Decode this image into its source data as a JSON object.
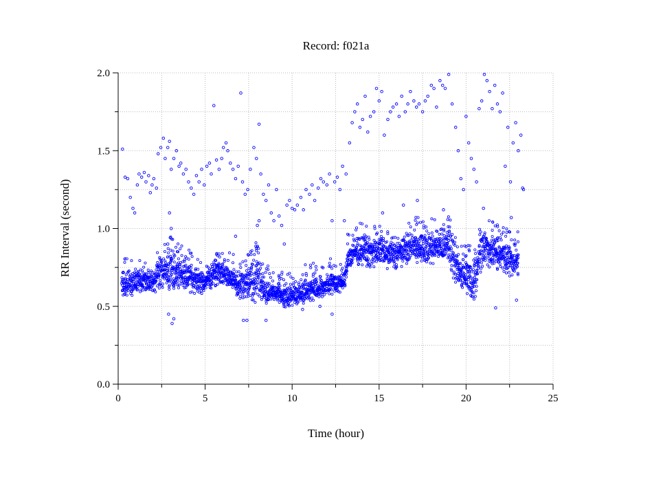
{
  "chart_data": {
    "type": "scatter",
    "title": "Record:  f021a",
    "xlabel": "Time (hour)",
    "ylabel": "RR Interval (second)",
    "xlim": [
      0,
      25
    ],
    "ylim": [
      0.0,
      2.0
    ],
    "xticks": [
      0,
      5,
      10,
      15,
      20,
      25
    ],
    "xtick_labels": [
      "0",
      "5",
      "10",
      "15",
      "20",
      "25"
    ],
    "yticks": [
      0.0,
      0.5,
      1.0,
      1.5,
      2.0
    ],
    "ytick_labels": [
      "0.0",
      "0.5",
      "1.0",
      "1.5",
      "2.0"
    ],
    "grid": true,
    "marker_color": "#0000ff",
    "dense_band": {
      "x": [
        0.2,
        0.5,
        1.0,
        1.5,
        2.0,
        2.5,
        3.0,
        3.5,
        4.0,
        4.5,
        5.0,
        5.5,
        6.0,
        6.5,
        7.0,
        7.5,
        8.0,
        8.5,
        9.0,
        9.5,
        10.0,
        10.5,
        11.0,
        11.5,
        12.0,
        12.5,
        13.0,
        13.2,
        13.5,
        14.0,
        14.5,
        15.0,
        15.5,
        16.0,
        16.5,
        17.0,
        17.5,
        18.0,
        18.5,
        19.0,
        19.3,
        19.5,
        20.0,
        20.5,
        20.8,
        21.0,
        21.5,
        22.0,
        22.5,
        23.0
      ],
      "y_low": [
        0.58,
        0.55,
        0.6,
        0.6,
        0.6,
        0.62,
        0.6,
        0.62,
        0.6,
        0.58,
        0.6,
        0.62,
        0.65,
        0.6,
        0.55,
        0.55,
        0.52,
        0.52,
        0.55,
        0.5,
        0.5,
        0.52,
        0.54,
        0.55,
        0.58,
        0.58,
        0.6,
        0.72,
        0.75,
        0.78,
        0.75,
        0.78,
        0.75,
        0.75,
        0.78,
        0.8,
        0.78,
        0.78,
        0.8,
        0.8,
        0.6,
        0.65,
        0.6,
        0.55,
        0.7,
        0.78,
        0.75,
        0.72,
        0.7,
        0.68
      ],
      "y_high": [
        0.75,
        0.73,
        0.72,
        0.72,
        0.74,
        0.82,
        0.85,
        0.8,
        0.77,
        0.75,
        0.72,
        0.78,
        0.8,
        0.74,
        0.72,
        0.76,
        0.85,
        0.68,
        0.62,
        0.63,
        0.64,
        0.66,
        0.68,
        0.68,
        0.7,
        0.72,
        0.7,
        0.88,
        0.92,
        0.95,
        0.92,
        0.95,
        0.92,
        0.92,
        0.95,
        0.98,
        0.96,
        0.98,
        0.98,
        1.0,
        0.95,
        0.82,
        0.8,
        0.78,
        1.0,
        1.02,
        0.95,
        0.92,
        0.9,
        0.88
      ]
    },
    "outlier_points": [
      {
        "x": 0.25,
        "y": 1.51
      },
      {
        "x": 0.4,
        "y": 1.33
      },
      {
        "x": 0.55,
        "y": 1.32
      },
      {
        "x": 0.7,
        "y": 1.2
      },
      {
        "x": 0.85,
        "y": 1.13
      },
      {
        "x": 0.95,
        "y": 1.1
      },
      {
        "x": 1.1,
        "y": 1.28
      },
      {
        "x": 1.2,
        "y": 1.35
      },
      {
        "x": 1.35,
        "y": 1.33
      },
      {
        "x": 1.5,
        "y": 1.36
      },
      {
        "x": 1.6,
        "y": 1.3
      },
      {
        "x": 1.75,
        "y": 1.34
      },
      {
        "x": 1.85,
        "y": 1.23
      },
      {
        "x": 1.95,
        "y": 1.28
      },
      {
        "x": 2.05,
        "y": 1.32
      },
      {
        "x": 2.2,
        "y": 1.26
      },
      {
        "x": 2.3,
        "y": 1.48
      },
      {
        "x": 2.45,
        "y": 1.52
      },
      {
        "x": 2.6,
        "y": 1.58
      },
      {
        "x": 2.7,
        "y": 1.45
      },
      {
        "x": 2.85,
        "y": 1.52
      },
      {
        "x": 2.95,
        "y": 1.56
      },
      {
        "x": 3.05,
        "y": 1.38
      },
      {
        "x": 3.2,
        "y": 1.45
      },
      {
        "x": 3.35,
        "y": 1.5
      },
      {
        "x": 3.5,
        "y": 1.4
      },
      {
        "x": 3.6,
        "y": 1.42
      },
      {
        "x": 3.75,
        "y": 1.35
      },
      {
        "x": 3.9,
        "y": 1.38
      },
      {
        "x": 4.05,
        "y": 1.3
      },
      {
        "x": 4.2,
        "y": 1.26
      },
      {
        "x": 4.35,
        "y": 1.22
      },
      {
        "x": 4.5,
        "y": 1.34
      },
      {
        "x": 4.65,
        "y": 1.3
      },
      {
        "x": 4.8,
        "y": 1.38
      },
      {
        "x": 4.95,
        "y": 1.28
      },
      {
        "x": 5.1,
        "y": 1.4
      },
      {
        "x": 5.25,
        "y": 1.42
      },
      {
        "x": 5.35,
        "y": 1.35
      },
      {
        "x": 5.5,
        "y": 1.79
      },
      {
        "x": 5.65,
        "y": 1.44
      },
      {
        "x": 5.8,
        "y": 1.38
      },
      {
        "x": 5.95,
        "y": 1.45
      },
      {
        "x": 6.05,
        "y": 1.52
      },
      {
        "x": 6.2,
        "y": 1.55
      },
      {
        "x": 6.3,
        "y": 1.5
      },
      {
        "x": 6.45,
        "y": 1.42
      },
      {
        "x": 6.6,
        "y": 1.38
      },
      {
        "x": 6.75,
        "y": 1.32
      },
      {
        "x": 6.9,
        "y": 1.4
      },
      {
        "x": 7.05,
        "y": 1.87
      },
      {
        "x": 7.15,
        "y": 1.3
      },
      {
        "x": 7.3,
        "y": 1.22
      },
      {
        "x": 7.45,
        "y": 1.25
      },
      {
        "x": 7.6,
        "y": 1.38
      },
      {
        "x": 7.8,
        "y": 1.52
      },
      {
        "x": 7.95,
        "y": 1.45
      },
      {
        "x": 8.1,
        "y": 1.67
      },
      {
        "x": 8.2,
        "y": 1.35
      },
      {
        "x": 8.35,
        "y": 1.22
      },
      {
        "x": 8.5,
        "y": 1.18
      },
      {
        "x": 8.65,
        "y": 1.28
      },
      {
        "x": 8.8,
        "y": 1.1
      },
      {
        "x": 8.95,
        "y": 1.05
      },
      {
        "x": 9.1,
        "y": 1.25
      },
      {
        "x": 9.25,
        "y": 1.08
      },
      {
        "x": 9.4,
        "y": 1.02
      },
      {
        "x": 9.55,
        "y": 0.9
      },
      {
        "x": 9.7,
        "y": 1.15
      },
      {
        "x": 9.85,
        "y": 1.18
      },
      {
        "x": 10.0,
        "y": 1.13
      },
      {
        "x": 10.15,
        "y": 1.12
      },
      {
        "x": 10.3,
        "y": 1.15
      },
      {
        "x": 10.5,
        "y": 1.2
      },
      {
        "x": 10.65,
        "y": 1.12
      },
      {
        "x": 10.8,
        "y": 1.25
      },
      {
        "x": 11.0,
        "y": 1.22
      },
      {
        "x": 11.15,
        "y": 1.28
      },
      {
        "x": 11.3,
        "y": 1.18
      },
      {
        "x": 11.5,
        "y": 1.26
      },
      {
        "x": 11.65,
        "y": 1.32
      },
      {
        "x": 11.8,
        "y": 1.3
      },
      {
        "x": 12.0,
        "y": 1.28
      },
      {
        "x": 12.15,
        "y": 1.35
      },
      {
        "x": 12.3,
        "y": 1.05
      },
      {
        "x": 12.45,
        "y": 1.3
      },
      {
        "x": 12.6,
        "y": 1.33
      },
      {
        "x": 12.75,
        "y": 1.25
      },
      {
        "x": 12.9,
        "y": 1.4
      },
      {
        "x": 13.1,
        "y": 1.35
      },
      {
        "x": 13.3,
        "y": 1.55
      },
      {
        "x": 13.45,
        "y": 1.68
      },
      {
        "x": 13.6,
        "y": 1.75
      },
      {
        "x": 13.75,
        "y": 1.8
      },
      {
        "x": 13.9,
        "y": 1.65
      },
      {
        "x": 14.05,
        "y": 1.7
      },
      {
        "x": 14.2,
        "y": 1.85
      },
      {
        "x": 14.35,
        "y": 1.62
      },
      {
        "x": 14.5,
        "y": 1.72
      },
      {
        "x": 14.7,
        "y": 1.75
      },
      {
        "x": 14.85,
        "y": 1.9
      },
      {
        "x": 15.0,
        "y": 1.82
      },
      {
        "x": 15.15,
        "y": 1.88
      },
      {
        "x": 15.3,
        "y": 1.6
      },
      {
        "x": 15.5,
        "y": 1.7
      },
      {
        "x": 15.65,
        "y": 1.75
      },
      {
        "x": 15.8,
        "y": 1.78
      },
      {
        "x": 16.0,
        "y": 1.8
      },
      {
        "x": 16.15,
        "y": 1.72
      },
      {
        "x": 16.3,
        "y": 1.85
      },
      {
        "x": 16.5,
        "y": 1.75
      },
      {
        "x": 16.65,
        "y": 1.8
      },
      {
        "x": 16.8,
        "y": 1.88
      },
      {
        "x": 17.0,
        "y": 1.82
      },
      {
        "x": 17.15,
        "y": 1.78
      },
      {
        "x": 17.3,
        "y": 1.8
      },
      {
        "x": 17.5,
        "y": 1.75
      },
      {
        "x": 17.65,
        "y": 1.82
      },
      {
        "x": 17.8,
        "y": 1.85
      },
      {
        "x": 18.0,
        "y": 1.92
      },
      {
        "x": 18.15,
        "y": 1.9
      },
      {
        "x": 18.3,
        "y": 1.78
      },
      {
        "x": 18.5,
        "y": 1.95
      },
      {
        "x": 18.65,
        "y": 1.92
      },
      {
        "x": 18.8,
        "y": 1.9
      },
      {
        "x": 19.0,
        "y": 1.99
      },
      {
        "x": 19.2,
        "y": 1.8
      },
      {
        "x": 19.4,
        "y": 1.65
      },
      {
        "x": 19.55,
        "y": 1.5
      },
      {
        "x": 19.7,
        "y": 1.32
      },
      {
        "x": 19.85,
        "y": 1.25
      },
      {
        "x": 20.0,
        "y": 1.72
      },
      {
        "x": 20.15,
        "y": 1.55
      },
      {
        "x": 20.3,
        "y": 1.45
      },
      {
        "x": 20.45,
        "y": 1.38
      },
      {
        "x": 20.6,
        "y": 1.3
      },
      {
        "x": 20.75,
        "y": 1.77
      },
      {
        "x": 20.9,
        "y": 1.82
      },
      {
        "x": 21.05,
        "y": 1.99
      },
      {
        "x": 21.2,
        "y": 1.95
      },
      {
        "x": 21.35,
        "y": 1.88
      },
      {
        "x": 21.5,
        "y": 1.77
      },
      {
        "x": 21.65,
        "y": 1.92
      },
      {
        "x": 21.8,
        "y": 1.8
      },
      {
        "x": 21.95,
        "y": 1.75
      },
      {
        "x": 22.1,
        "y": 1.87
      },
      {
        "x": 22.25,
        "y": 1.4
      },
      {
        "x": 22.4,
        "y": 1.65
      },
      {
        "x": 22.55,
        "y": 1.3
      },
      {
        "x": 22.7,
        "y": 1.55
      },
      {
        "x": 22.85,
        "y": 1.68
      },
      {
        "x": 23.0,
        "y": 1.5
      },
      {
        "x": 23.15,
        "y": 1.6
      },
      {
        "x": 23.25,
        "y": 1.26
      },
      {
        "x": 23.3,
        "y": 1.25
      },
      {
        "x": 2.9,
        "y": 0.45
      },
      {
        "x": 3.1,
        "y": 0.39
      },
      {
        "x": 3.2,
        "y": 0.42
      },
      {
        "x": 7.2,
        "y": 0.41
      },
      {
        "x": 7.4,
        "y": 0.41
      },
      {
        "x": 8.5,
        "y": 0.41
      },
      {
        "x": 21.7,
        "y": 0.49
      },
      {
        "x": 22.9,
        "y": 0.54
      },
      {
        "x": 2.85,
        "y": 0.9
      },
      {
        "x": 2.95,
        "y": 1.1
      },
      {
        "x": 3.05,
        "y": 1.0
      },
      {
        "x": 6.75,
        "y": 0.95
      },
      {
        "x": 8.0,
        "y": 1.02
      },
      {
        "x": 8.1,
        "y": 1.05
      },
      {
        "x": 13.0,
        "y": 1.05
      },
      {
        "x": 15.2,
        "y": 1.1
      },
      {
        "x": 16.4,
        "y": 1.15
      },
      {
        "x": 17.2,
        "y": 1.18
      },
      {
        "x": 18.7,
        "y": 1.12
      },
      {
        "x": 21.0,
        "y": 1.13
      },
      {
        "x": 22.6,
        "y": 1.07
      },
      {
        "x": 12.3,
        "y": 0.45
      },
      {
        "x": 10.6,
        "y": 0.48
      },
      {
        "x": 11.6,
        "y": 0.5
      }
    ]
  }
}
